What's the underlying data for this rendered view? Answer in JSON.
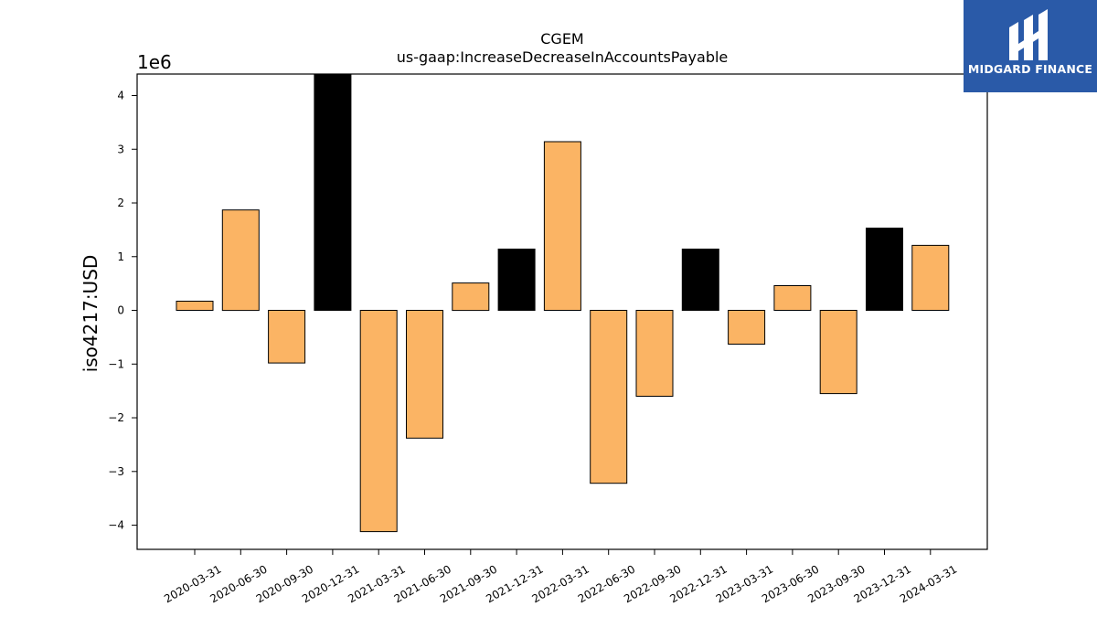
{
  "chart_data": {
    "type": "bar",
    "title": "CGEM",
    "subtitle": "us-gaap:IncreaseDecreaseInAccountsPayable",
    "xlabel": "",
    "ylabel": "iso4217:USD",
    "scale_label": "1e6",
    "categories": [
      "2020-03-31",
      "2020-06-30",
      "2020-09-30",
      "2020-12-31",
      "2021-03-31",
      "2021-06-30",
      "2021-09-30",
      "2021-12-31",
      "2022-03-31",
      "2022-06-30",
      "2022-09-30",
      "2022-12-31",
      "2023-03-31",
      "2023-06-30",
      "2023-09-30",
      "2023-12-31",
      "2024-03-31"
    ],
    "values": [
      170000,
      1870000,
      -980000,
      4400000,
      -4120000,
      -2380000,
      510000,
      1140000,
      3140000,
      -3220000,
      -1600000,
      1140000,
      -630000,
      460000,
      -1550000,
      1530000,
      1210000
    ],
    "highlight": [
      false,
      false,
      false,
      true,
      false,
      false,
      false,
      true,
      false,
      false,
      false,
      true,
      false,
      false,
      false,
      true,
      false
    ],
    "ylim": [
      -4450000,
      4400000
    ],
    "yticks": [
      -4,
      -3,
      -2,
      -1,
      0,
      1,
      2,
      3,
      4
    ],
    "ytick_labels": [
      "−4",
      "−3",
      "−2",
      "−1",
      "0",
      "1",
      "2",
      "3",
      "4"
    ],
    "grid": false,
    "colors": {
      "bar": "#fbb464",
      "highlight": "#000000",
      "edge": "#000000"
    }
  },
  "logo": {
    "text": "MIDGARD FINANCE"
  }
}
